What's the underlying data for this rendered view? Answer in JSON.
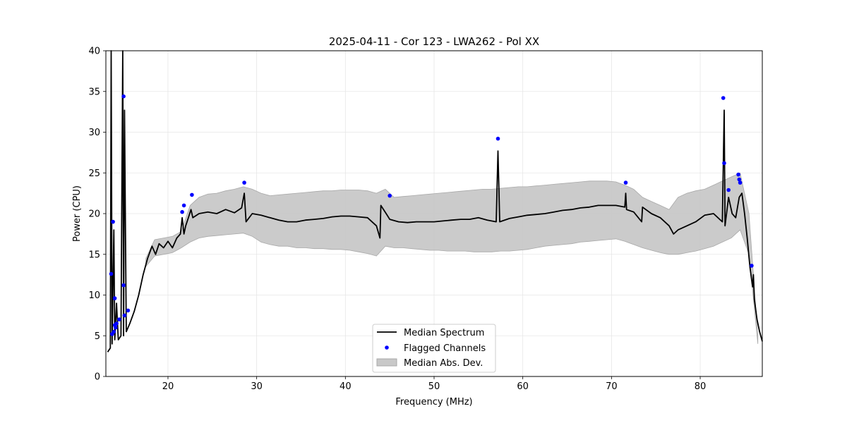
{
  "chart_data": {
    "type": "line",
    "title": "2025-04-11 - Cor 123 - LWA262 - Pol XX",
    "xlabel": "Frequency (MHz)",
    "ylabel": "Power (CPU)",
    "xlim": [
      13,
      87
    ],
    "ylim": [
      0,
      40
    ],
    "xticks": [
      20,
      30,
      40,
      50,
      60,
      70,
      80
    ],
    "yticks": [
      0,
      5,
      10,
      15,
      20,
      25,
      30,
      35,
      40
    ],
    "grid": true,
    "legend": {
      "location": "bottom-center",
      "entries": [
        {
          "label": "Median Spectrum",
          "kind": "line",
          "color": "#000000"
        },
        {
          "label": "Flagged Channels",
          "kind": "marker",
          "color": "#0000ff"
        },
        {
          "label": "Median Abs. Dev.",
          "kind": "patch",
          "color": "#c8c8c8"
        }
      ]
    },
    "series": [
      {
        "name": "Median Spectrum",
        "color": "#000000",
        "points": [
          [
            13.2,
            3.0
          ],
          [
            13.5,
            3.5
          ],
          [
            13.6,
            40.0
          ],
          [
            13.7,
            4.0
          ],
          [
            13.9,
            18.0
          ],
          [
            14.0,
            4.5
          ],
          [
            14.2,
            9.0
          ],
          [
            14.4,
            4.5
          ],
          [
            14.7,
            5.0
          ],
          [
            14.9,
            40.0
          ],
          [
            15.0,
            5.0
          ],
          [
            15.1,
            32.7
          ],
          [
            15.3,
            5.5
          ],
          [
            15.7,
            6.5
          ],
          [
            16.2,
            8.0
          ],
          [
            16.7,
            10.0
          ],
          [
            17.2,
            12.5
          ],
          [
            17.7,
            14.5
          ],
          [
            18.2,
            16.0
          ],
          [
            18.6,
            15.0
          ],
          [
            19.0,
            16.3
          ],
          [
            19.5,
            15.8
          ],
          [
            20.0,
            16.6
          ],
          [
            20.5,
            15.8
          ],
          [
            21.0,
            17.0
          ],
          [
            21.4,
            17.5
          ],
          [
            21.6,
            19.5
          ],
          [
            21.8,
            17.5
          ],
          [
            22.0,
            18.5
          ],
          [
            22.3,
            19.5
          ],
          [
            22.6,
            20.5
          ],
          [
            22.8,
            19.5
          ],
          [
            23.5,
            20.0
          ],
          [
            24.5,
            20.2
          ],
          [
            25.5,
            20.0
          ],
          [
            26.5,
            20.5
          ],
          [
            27.5,
            20.1
          ],
          [
            28.3,
            20.7
          ],
          [
            28.6,
            22.5
          ],
          [
            28.8,
            19.0
          ],
          [
            29.5,
            20.0
          ],
          [
            30.5,
            19.8
          ],
          [
            31.5,
            19.5
          ],
          [
            32.5,
            19.2
          ],
          [
            33.5,
            19.0
          ],
          [
            34.5,
            19.0
          ],
          [
            35.5,
            19.2
          ],
          [
            36.5,
            19.3
          ],
          [
            37.5,
            19.4
          ],
          [
            38.5,
            19.6
          ],
          [
            39.5,
            19.7
          ],
          [
            40.5,
            19.7
          ],
          [
            41.5,
            19.6
          ],
          [
            42.5,
            19.5
          ],
          [
            43.5,
            18.5
          ],
          [
            43.9,
            17.0
          ],
          [
            44.0,
            21.0
          ],
          [
            44.6,
            20.0
          ],
          [
            45.0,
            19.3
          ],
          [
            46.0,
            19.0
          ],
          [
            47.0,
            18.9
          ],
          [
            48.0,
            19.0
          ],
          [
            49.0,
            19.0
          ],
          [
            50.0,
            19.0
          ],
          [
            51.0,
            19.1
          ],
          [
            52.0,
            19.2
          ],
          [
            53.0,
            19.3
          ],
          [
            54.0,
            19.3
          ],
          [
            55.0,
            19.5
          ],
          [
            56.0,
            19.2
          ],
          [
            57.0,
            19.0
          ],
          [
            57.2,
            27.7
          ],
          [
            57.4,
            19.0
          ],
          [
            58.5,
            19.4
          ],
          [
            59.5,
            19.6
          ],
          [
            60.5,
            19.8
          ],
          [
            61.5,
            19.9
          ],
          [
            62.5,
            20.0
          ],
          [
            63.5,
            20.2
          ],
          [
            64.5,
            20.4
          ],
          [
            65.5,
            20.5
          ],
          [
            66.5,
            20.7
          ],
          [
            67.5,
            20.8
          ],
          [
            68.5,
            21.0
          ],
          [
            69.5,
            21.0
          ],
          [
            70.5,
            21.0
          ],
          [
            71.5,
            20.8
          ],
          [
            71.6,
            22.5
          ],
          [
            71.7,
            20.5
          ],
          [
            72.5,
            20.2
          ],
          [
            73.4,
            19.0
          ],
          [
            73.5,
            20.8
          ],
          [
            74.5,
            20.0
          ],
          [
            75.5,
            19.5
          ],
          [
            76.5,
            18.5
          ],
          [
            77.0,
            17.5
          ],
          [
            77.5,
            18.0
          ],
          [
            78.5,
            18.5
          ],
          [
            79.5,
            19.0
          ],
          [
            80.5,
            19.8
          ],
          [
            81.5,
            20.0
          ],
          [
            82.5,
            19.0
          ],
          [
            82.7,
            32.7
          ],
          [
            82.8,
            18.5
          ],
          [
            83.2,
            22.0
          ],
          [
            83.6,
            20.0
          ],
          [
            84.0,
            19.5
          ],
          [
            84.4,
            22.0
          ],
          [
            84.7,
            22.5
          ],
          [
            85.0,
            20.0
          ],
          [
            85.3,
            17.0
          ],
          [
            85.6,
            13.5
          ],
          [
            85.9,
            11.0
          ],
          [
            86.0,
            12.5
          ],
          [
            86.1,
            9.5
          ],
          [
            86.4,
            7.0
          ],
          [
            86.7,
            5.5
          ],
          [
            87.0,
            4.3
          ]
        ]
      }
    ],
    "mad_band": {
      "name": "Median Abs. Dev.",
      "color": "#c8c8c8",
      "x": [
        17.5,
        18.5,
        19.5,
        20.5,
        21.5,
        22.5,
        23.5,
        24.5,
        25.5,
        26.5,
        27.5,
        28.5,
        29.5,
        30.5,
        31.5,
        32.5,
        33.5,
        34.5,
        35.5,
        36.5,
        37.5,
        38.5,
        39.5,
        40.5,
        41.5,
        42.5,
        43.5,
        44.5,
        45.5,
        46.5,
        47.5,
        48.5,
        49.5,
        50.5,
        51.5,
        52.5,
        53.5,
        54.5,
        55.5,
        56.5,
        57.5,
        58.5,
        59.5,
        60.5,
        61.5,
        62.5,
        63.5,
        64.5,
        65.5,
        66.5,
        67.5,
        68.5,
        69.5,
        70.5,
        71.5,
        72.5,
        73.5,
        74.5,
        75.5,
        76.5,
        77.5,
        78.5,
        79.5,
        80.5,
        81.5,
        82.5,
        83.5,
        84.5,
        85.5,
        86.5
      ],
      "upper": [
        14.5,
        16.8,
        17.0,
        17.2,
        17.8,
        21.0,
        22.0,
        22.4,
        22.5,
        22.8,
        23.0,
        23.3,
        23.0,
        22.5,
        22.2,
        22.3,
        22.4,
        22.5,
        22.6,
        22.7,
        22.8,
        22.8,
        22.9,
        22.9,
        22.9,
        22.8,
        22.5,
        23.0,
        22.0,
        22.1,
        22.2,
        22.3,
        22.4,
        22.5,
        22.6,
        22.7,
        22.8,
        22.9,
        23.0,
        23.0,
        23.1,
        23.2,
        23.3,
        23.3,
        23.4,
        23.5,
        23.6,
        23.7,
        23.8,
        23.9,
        24.0,
        24.0,
        24.0,
        23.9,
        23.5,
        23.0,
        22.0,
        21.5,
        21.0,
        20.5,
        22.0,
        22.5,
        22.8,
        23.0,
        23.5,
        24.0,
        24.5,
        25.0,
        20.0,
        5.0
      ],
      "lower": [
        13.5,
        14.8,
        15.0,
        15.2,
        15.8,
        16.5,
        17.0,
        17.2,
        17.3,
        17.4,
        17.5,
        17.6,
        17.2,
        16.5,
        16.2,
        16.0,
        16.0,
        15.8,
        15.8,
        15.7,
        15.7,
        15.6,
        15.6,
        15.5,
        15.3,
        15.1,
        14.8,
        16.0,
        15.8,
        15.8,
        15.7,
        15.6,
        15.5,
        15.5,
        15.4,
        15.4,
        15.4,
        15.3,
        15.3,
        15.3,
        15.4,
        15.4,
        15.5,
        15.6,
        15.8,
        16.0,
        16.1,
        16.2,
        16.3,
        16.5,
        16.6,
        16.7,
        16.8,
        16.9,
        16.6,
        16.2,
        15.8,
        15.5,
        15.2,
        15.0,
        15.0,
        15.2,
        15.4,
        15.7,
        16.0,
        16.5,
        17.0,
        18.0,
        15.0,
        4.0
      ]
    },
    "flagged_channels": {
      "name": "Flagged Channels",
      "color": "#0000ff",
      "points": [
        [
          13.6,
          12.6
        ],
        [
          13.7,
          5.2
        ],
        [
          13.8,
          19.0
        ],
        [
          13.9,
          5.5
        ],
        [
          14.0,
          9.6
        ],
        [
          14.0,
          6.3
        ],
        [
          14.1,
          6.0
        ],
        [
          14.2,
          6.5
        ],
        [
          14.5,
          7.0
        ],
        [
          15.0,
          34.4
        ],
        [
          15.0,
          11.2
        ],
        [
          15.1,
          7.5
        ],
        [
          15.5,
          8.1
        ],
        [
          21.6,
          20.2
        ],
        [
          21.8,
          21.0
        ],
        [
          22.7,
          22.3
        ],
        [
          28.6,
          23.8
        ],
        [
          45.0,
          22.2
        ],
        [
          57.2,
          29.2
        ],
        [
          71.6,
          23.8
        ],
        [
          82.6,
          34.2
        ],
        [
          82.7,
          26.2
        ],
        [
          83.2,
          22.9
        ],
        [
          84.3,
          24.8
        ],
        [
          84.4,
          24.2
        ],
        [
          84.5,
          23.8
        ],
        [
          85.8,
          13.6
        ]
      ]
    }
  }
}
